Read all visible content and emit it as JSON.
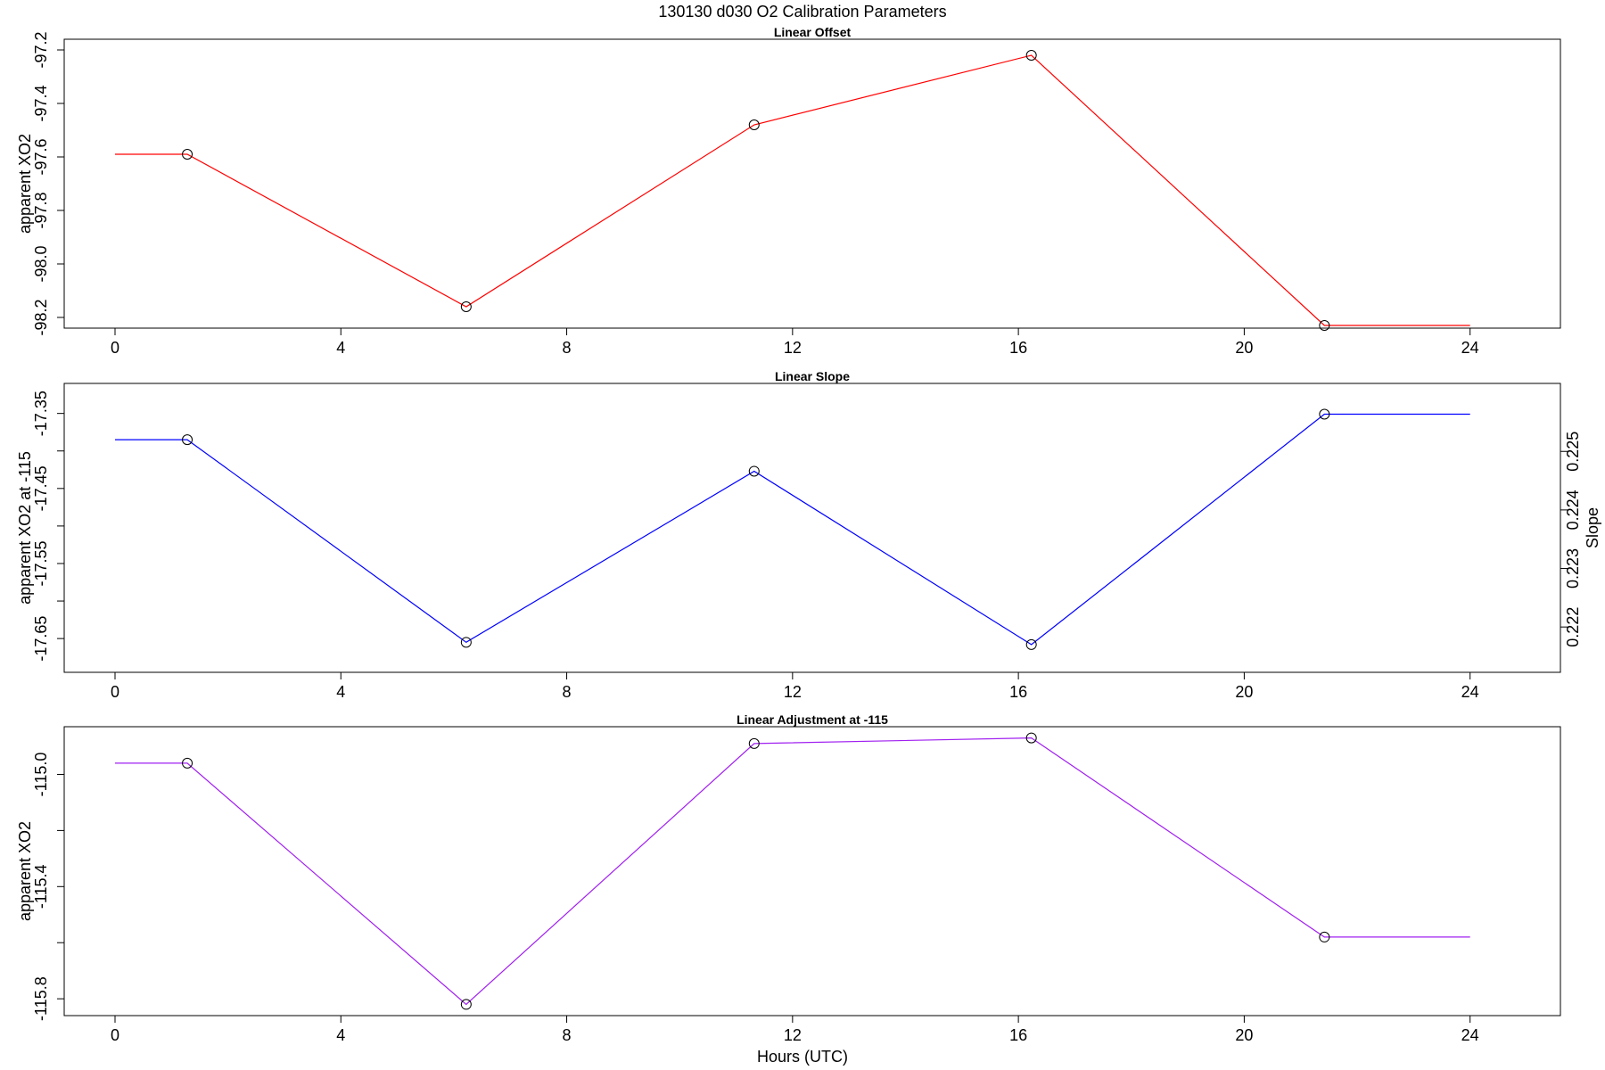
{
  "title": "130130   d030   O2 Calibration Parameters",
  "xlabel": "Hours (UTC)",
  "chart_data": [
    {
      "type": "line",
      "title": "Linear Offset",
      "ylabel": "apparent XO2",
      "color": "#ff0000",
      "xlim": [
        -0.9,
        25.6
      ],
      "ylim": [
        -98.24,
        -97.16
      ],
      "xticks": [
        0,
        4,
        8,
        12,
        16,
        20,
        24
      ],
      "yticks": [
        -98.2,
        -98.0,
        -97.8,
        -97.6,
        -97.4,
        -97.2
      ],
      "ytick_labels": [
        "-98.2",
        "-98.0",
        "-97.8",
        "-97.6",
        "-97.4",
        "-97.2"
      ],
      "x": [
        1.28,
        6.22,
        11.32,
        16.23,
        21.42
      ],
      "y": [
        -97.59,
        -98.16,
        -97.48,
        -97.22,
        -98.23
      ],
      "line_start": [
        0.0,
        -97.59
      ],
      "line_end": [
        24.0,
        -98.23
      ]
    },
    {
      "type": "line",
      "title": "Linear Slope",
      "ylabel": "apparent XO2 at -115",
      "ylabel_right": "Slope",
      "color": "#0000ff",
      "xlim": [
        -0.9,
        25.6
      ],
      "ylim": [
        -17.695,
        -17.31
      ],
      "xticks": [
        0,
        4,
        8,
        12,
        16,
        20,
        24
      ],
      "yticks": [
        -17.65,
        -17.6,
        -17.55,
        -17.5,
        -17.45,
        -17.4,
        -17.35
      ],
      "ytick_labels": [
        "-17.65",
        "",
        "-17.55",
        "",
        "-17.45",
        "",
        "-17.35"
      ],
      "yticks_right": [
        0.222,
        0.223,
        0.224,
        0.225
      ],
      "ytick_labels_right": [
        "0.222",
        "0.223",
        "0.224",
        "0.225"
      ],
      "x": [
        1.28,
        6.22,
        11.32,
        16.23,
        21.42
      ],
      "y": [
        -17.385,
        -17.655,
        -17.427,
        -17.658,
        -17.351
      ],
      "slope": [
        0.2252,
        0.2218,
        0.2247,
        0.2217,
        0.2256
      ],
      "line_start": [
        0.0,
        -17.385
      ],
      "line_end": [
        24.0,
        -17.351
      ]
    },
    {
      "type": "line",
      "title": "Linear Adjustment at -115",
      "ylabel": "apparent XO2",
      "color": "#a020f0",
      "xlim": [
        -0.9,
        25.6
      ],
      "ylim": [
        -115.86,
        -114.83
      ],
      "xticks": [
        0,
        4,
        8,
        12,
        16,
        20,
        24
      ],
      "yticks": [
        -115.8,
        -115.6,
        -115.4,
        -115.2,
        -115.0
      ],
      "ytick_labels": [
        "-115.8",
        "",
        "-115.4",
        "",
        "-115.0"
      ],
      "x": [
        1.28,
        6.22,
        11.32,
        16.23,
        21.42
      ],
      "y": [
        -114.96,
        -115.82,
        -114.89,
        -114.87,
        -115.58
      ],
      "line_start": [
        0.0,
        -114.96
      ],
      "line_end": [
        24.0,
        -115.58
      ]
    }
  ]
}
